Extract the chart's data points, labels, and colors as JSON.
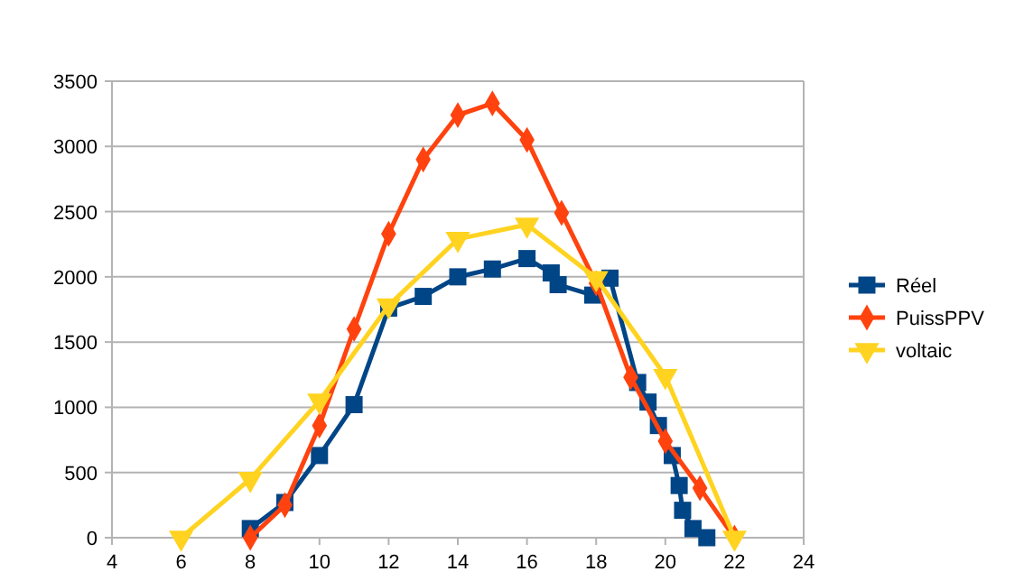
{
  "chart_data": {
    "type": "line",
    "xlim": [
      4,
      24
    ],
    "xticks": [
      4,
      6,
      8,
      10,
      12,
      14,
      16,
      18,
      20,
      22,
      24
    ],
    "ylim": [
      0,
      3500
    ],
    "yticks": [
      0,
      500,
      1000,
      1500,
      2000,
      2500,
      3000,
      3500
    ],
    "grid": "y",
    "legend": "right",
    "series": [
      {
        "name": "Réel",
        "color": "#004586",
        "marker": "square",
        "x": [
          8,
          9,
          10,
          11,
          12,
          13,
          14,
          15,
          16,
          16.7,
          16.9,
          17.9,
          18.4,
          19.2,
          19.5,
          19.8,
          20.2,
          20.4,
          20.5,
          20.8,
          21.2
        ],
        "values": [
          70,
          270,
          630,
          1020,
          1760,
          1850,
          2000,
          2060,
          2140,
          2030,
          1940,
          1860,
          1990,
          1190,
          1040,
          860,
          630,
          400,
          210,
          70,
          0
        ]
      },
      {
        "name": "PuissPPV",
        "color": "#ff420e",
        "marker": "diamond",
        "x": [
          8,
          9,
          10,
          11,
          12,
          13,
          14,
          15,
          16,
          17,
          18,
          19,
          20,
          21,
          22
        ],
        "values": [
          0,
          250,
          860,
          1600,
          2330,
          2900,
          3240,
          3330,
          3050,
          2490,
          1950,
          1230,
          740,
          380,
          0
        ]
      },
      {
        "name": "voltaic",
        "color": "#ffd320",
        "marker": "triangle",
        "x": [
          6,
          8,
          10,
          12,
          14,
          16,
          18,
          20,
          22
        ],
        "values": [
          0,
          450,
          1050,
          1780,
          2290,
          2400,
          1990,
          1240,
          0
        ]
      }
    ]
  }
}
